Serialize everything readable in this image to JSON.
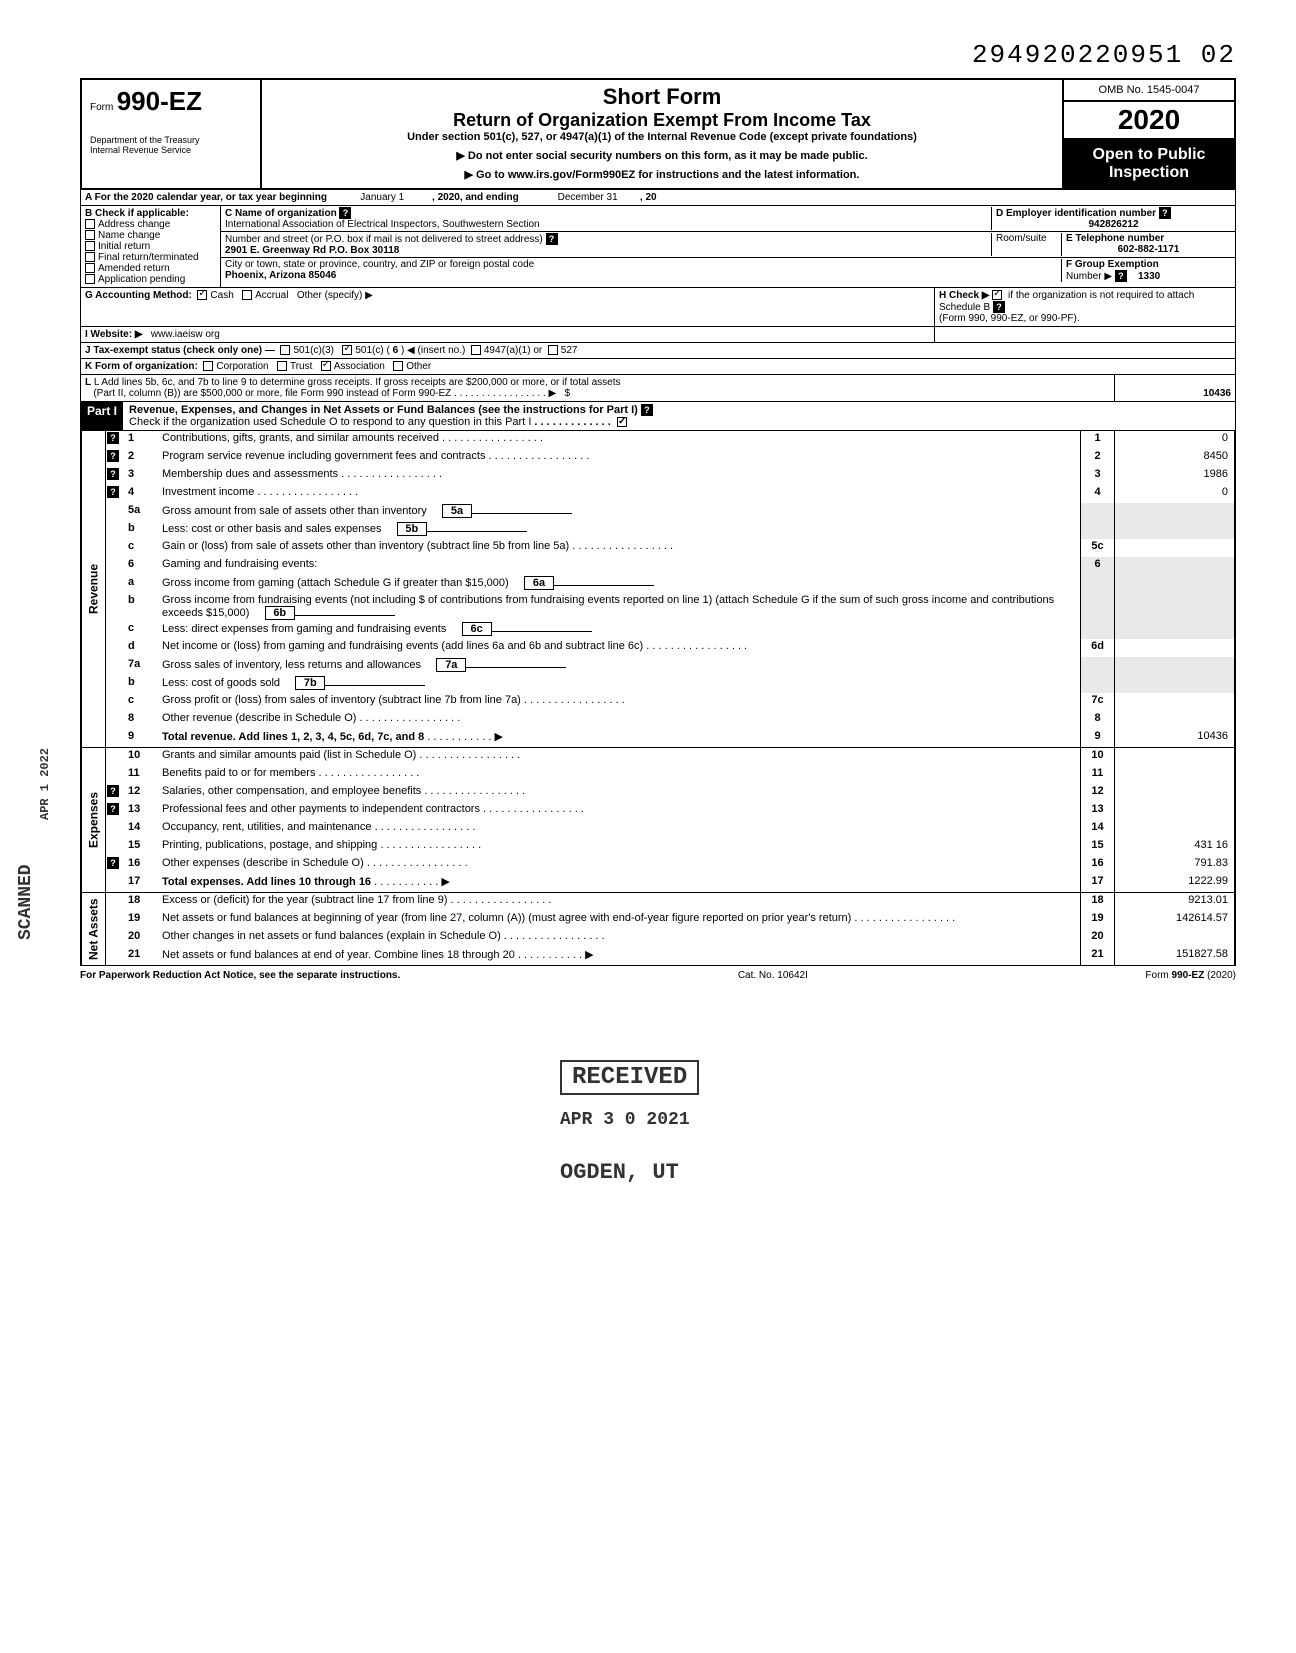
{
  "top_number": "294920220951 02",
  "omb": "OMB No. 1545-0047",
  "form": {
    "prefix": "Form",
    "number": "990-EZ"
  },
  "year": "2020",
  "title1": "Short Form",
  "title2": "Return of Organization Exempt From Income Tax",
  "title_sub": "Under section 501(c), 527, or 4947(a)(1) of the Internal Revenue Code (except private foundations)",
  "note1": "▶ Do not enter social security numbers on this form, as it may be made public.",
  "note2": "▶ Go to www.irs.gov/Form990EZ for instructions and the latest information.",
  "dept": "Department of the Treasury\nInternal Revenue Service",
  "open": "Open to Public Inspection",
  "A": {
    "label": "A For the 2020 calendar year, or tax year beginning",
    "mid": "January 1",
    "mid2": ", 2020, and ending",
    "end": "December 31",
    "end2": ", 20"
  },
  "B": {
    "label": "B  Check if applicable:",
    "items": [
      "Address change",
      "Name change",
      "Initial return",
      "Final return/terminated",
      "Amended return",
      "Application pending"
    ]
  },
  "C": {
    "label": "C  Name of organization",
    "value": "International Association of Electrical Inspectors, Southwestern Section",
    "street_label": "Number and street (or P.O. box if mail is not delivered to street address)",
    "street": "2901 E. Greenway Rd  P.O. Box 30118",
    "room_label": "Room/suite",
    "city_label": "City or town, state or province, country, and ZIP or foreign postal code",
    "city": "Phoenix, Arizona 85046"
  },
  "D": {
    "label": "D Employer identification number",
    "value": "942826212"
  },
  "E": {
    "label": "E  Telephone number",
    "value": "602-882-1171"
  },
  "F": {
    "label": "F  Group Exemption",
    "label2": "Number ▶",
    "value": "1330"
  },
  "G": {
    "label": "G  Accounting Method:",
    "cash": "Cash",
    "accrual": "Accrual",
    "other": "Other (specify) ▶"
  },
  "H": {
    "label": "H  Check ▶",
    "text": "if the organization is not required to attach Schedule B",
    "text2": "(Form 990, 990-EZ, or 990-PF)."
  },
  "I": {
    "label": "I  Website: ▶",
    "value": "www.iaeisw org"
  },
  "J": {
    "label": "J  Tax-exempt status (check only one) —",
    "c3": "501(c)(3)",
    "c": "501(c) (",
    "cnum": "6",
    "cins": ") ◀ (insert no.)",
    "a": "4947(a)(1) or",
    "s527": "527"
  },
  "K": {
    "label": "K  Form of organization:",
    "items": [
      "Corporation",
      "Trust",
      "Association",
      "Other"
    ]
  },
  "L": {
    "text": "L  Add lines 5b, 6c, and 7b to line 9 to determine gross receipts. If gross receipts are $200,000 or more, or if total assets",
    "text2": "(Part II, column (B)) are $500,000 or more, file Form 990 instead of Form 990-EZ",
    "value": "10436"
  },
  "partI": {
    "label": "Part I",
    "title": "Revenue, Expenses, and Changes in Net Assets or Fund Balances (see the instructions for Part I)",
    "check": "Check if the organization used Schedule O to respond to any question in this Part I"
  },
  "lines": {
    "l1": {
      "n": "1",
      "d": "Contributions, gifts, grants, and similar amounts received",
      "v": "0"
    },
    "l2": {
      "n": "2",
      "d": "Program service revenue including government fees and contracts",
      "v": "8450"
    },
    "l3": {
      "n": "3",
      "d": "Membership dues and assessments",
      "v": "1986"
    },
    "l4": {
      "n": "4",
      "d": "Investment income",
      "v": "0"
    },
    "l5a": {
      "n": "5a",
      "d": "Gross amount from sale of assets other than inventory",
      "m": "5a"
    },
    "l5b": {
      "n": "b",
      "d": "Less: cost or other basis and sales expenses",
      "m": "5b"
    },
    "l5c": {
      "n": "c",
      "d": "Gain or (loss) from sale of assets other than inventory (subtract line 5b from line 5a)",
      "bn": "5c"
    },
    "l6": {
      "n": "6",
      "d": "Gaming and fundraising events:"
    },
    "l6a": {
      "n": "a",
      "d": "Gross income from gaming (attach Schedule G if greater than $15,000)",
      "m": "6a"
    },
    "l6b": {
      "n": "b",
      "d": "Gross income from fundraising events (not including  $                   of contributions from fundraising events reported on line 1) (attach Schedule G if the sum of such gross income and contributions exceeds $15,000)",
      "m": "6b"
    },
    "l6c": {
      "n": "c",
      "d": "Less: direct expenses from gaming and fundraising events",
      "m": "6c"
    },
    "l6d": {
      "n": "d",
      "d": "Net income or (loss) from gaming and fundraising events (add lines 6a and 6b and subtract line 6c)",
      "bn": "6d"
    },
    "l7a": {
      "n": "7a",
      "d": "Gross sales of inventory, less returns and allowances",
      "m": "7a"
    },
    "l7b": {
      "n": "b",
      "d": "Less: cost of goods sold",
      "m": "7b"
    },
    "l7c": {
      "n": "c",
      "d": "Gross profit or (loss) from sales of inventory (subtract line 7b from line 7a)",
      "bn": "7c"
    },
    "l8": {
      "n": "8",
      "d": "Other revenue (describe in Schedule O)",
      "bn": "8"
    },
    "l9": {
      "n": "9",
      "d": "Total revenue. Add lines 1, 2, 3, 4, 5c, 6d, 7c, and 8",
      "bn": "9",
      "v": "10436"
    },
    "l10": {
      "n": "10",
      "d": "Grants and similar amounts paid (list in Schedule O)",
      "bn": "10"
    },
    "l11": {
      "n": "11",
      "d": "Benefits paid to or for members",
      "bn": "11"
    },
    "l12": {
      "n": "12",
      "d": "Salaries, other compensation, and employee benefits",
      "bn": "12"
    },
    "l13": {
      "n": "13",
      "d": "Professional fees and other payments to independent contractors",
      "bn": "13"
    },
    "l14": {
      "n": "14",
      "d": "Occupancy, rent, utilities, and maintenance",
      "bn": "14"
    },
    "l15": {
      "n": "15",
      "d": "Printing, publications, postage, and shipping",
      "bn": "15",
      "v": "431 16"
    },
    "l16": {
      "n": "16",
      "d": "Other expenses (describe in Schedule O)",
      "bn": "16",
      "v": "791.83"
    },
    "l17": {
      "n": "17",
      "d": "Total expenses. Add lines 10 through 16",
      "bn": "17",
      "v": "1222.99"
    },
    "l18": {
      "n": "18",
      "d": "Excess or (deficit) for the year (subtract line 17 from line 9)",
      "bn": "18",
      "v": "9213.01"
    },
    "l19": {
      "n": "19",
      "d": "Net assets or fund balances at beginning of year (from line 27, column (A)) (must agree with end-of-year figure reported on prior year's return)",
      "bn": "19",
      "v": "142614.57"
    },
    "l20": {
      "n": "20",
      "d": "Other changes in net assets or fund balances (explain in Schedule O)",
      "bn": "20"
    },
    "l21": {
      "n": "21",
      "d": "Net assets or fund balances at end of year. Combine lines 18 through 20",
      "bn": "21",
      "v": "151827.58"
    }
  },
  "sections": {
    "revenue": "Revenue",
    "expenses": "Expenses",
    "netassets": "Net Assets"
  },
  "footer": {
    "left": "For Paperwork Reduction Act Notice, see the separate instructions.",
    "mid": "Cat. No. 10642I",
    "right": "Form 990-EZ (2020)"
  },
  "stamps": {
    "received": "RECEIVED",
    "date": "APR 3 0 2021",
    "ogden": "OGDEN, UT",
    "scanned": "SCANNED",
    "apr": "APR 1 2022"
  }
}
